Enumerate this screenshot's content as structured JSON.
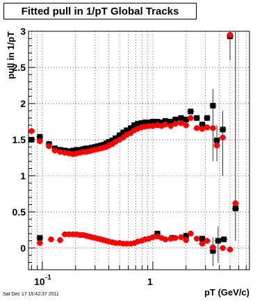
{
  "title": "Fitted pull in 1/pT  Global Tracks",
  "timestamp": "Sat Dec 17 15:42:37 2011",
  "chart_data": {
    "type": "scatter",
    "title": "Fitted pull in 1/pT  Global Tracks",
    "xlabel": "pT (GeV/c)",
    "ylabel": "pull in 1/pT",
    "x_scale": "log",
    "xlim": [
      0.075,
      7.5
    ],
    "ylim": [
      -0.3,
      3.0
    ],
    "x_ticks": [
      {
        "value": 0.1,
        "label": "10",
        "exp": "-1"
      },
      {
        "value": 1,
        "label": "1",
        "exp": ""
      }
    ],
    "y_ticks": [
      {
        "value": 0,
        "label": "0"
      },
      {
        "value": 0.5,
        "label": "0.5"
      },
      {
        "value": 1,
        "label": "1"
      },
      {
        "value": 1.5,
        "label": "1.5"
      },
      {
        "value": 2,
        "label": "2"
      },
      {
        "value": 2.5,
        "label": "2.5"
      },
      {
        "value": 3,
        "label": "3"
      }
    ],
    "grid": true,
    "colors": {
      "series_a": "#000000",
      "series_b": "#ff0000"
    },
    "series": [
      {
        "marker": "square",
        "color": "#000000",
        "points": [
          [
            0.08,
            1.5
          ],
          [
            0.095,
            1.54
          ],
          [
            0.115,
            1.44
          ],
          [
            0.13,
            1.38
          ],
          [
            0.145,
            1.36
          ],
          [
            0.16,
            1.35
          ],
          [
            0.175,
            1.34
          ],
          [
            0.19,
            1.35
          ],
          [
            0.205,
            1.36
          ],
          [
            0.22,
            1.36
          ],
          [
            0.235,
            1.37
          ],
          [
            0.25,
            1.38
          ],
          [
            0.265,
            1.38
          ],
          [
            0.28,
            1.39
          ],
          [
            0.3,
            1.4
          ],
          [
            0.32,
            1.41
          ],
          [
            0.34,
            1.42
          ],
          [
            0.36,
            1.43
          ],
          [
            0.38,
            1.45
          ],
          [
            0.4,
            1.47
          ],
          [
            0.43,
            1.49
          ],
          [
            0.46,
            1.52
          ],
          [
            0.5,
            1.56
          ],
          [
            0.54,
            1.6
          ],
          [
            0.58,
            1.63
          ],
          [
            0.63,
            1.66
          ],
          [
            0.68,
            1.7
          ],
          [
            0.73,
            1.72
          ],
          [
            0.79,
            1.73
          ],
          [
            0.85,
            1.74
          ],
          [
            0.92,
            1.74
          ],
          [
            1.0,
            1.75
          ],
          [
            1.1,
            1.75
          ],
          [
            1.2,
            1.74
          ],
          [
            1.3,
            1.76
          ],
          [
            1.45,
            1.75
          ],
          [
            1.6,
            1.78
          ],
          [
            1.8,
            1.8
          ],
          [
            2.0,
            1.78
          ],
          [
            2.2,
            1.89
          ],
          [
            2.5,
            1.8
          ],
          [
            2.8,
            1.71
          ],
          [
            3.1,
            1.8
          ],
          [
            3.5,
            1.97
          ],
          [
            3.8,
            1.49
          ],
          [
            4.3,
            1.64
          ],
          [
            5.0,
            2.93
          ],
          [
            5.6,
            0.55
          ]
        ],
        "low_points": [
          [
            0.095,
            0.14
          ],
          [
            1.1,
            0.2
          ],
          [
            1.5,
            0.14
          ],
          [
            2.0,
            0.17
          ],
          [
            2.8,
            0.13
          ],
          [
            3.5,
            -0.04
          ],
          [
            3.9,
            0.1
          ],
          [
            4.4,
            0.12
          ],
          [
            5.6,
            0.55
          ]
        ]
      },
      {
        "marker": "circle",
        "color": "#ff0000",
        "points": [
          [
            0.08,
            1.62
          ],
          [
            0.095,
            1.48
          ],
          [
            0.115,
            1.41
          ],
          [
            0.13,
            1.35
          ],
          [
            0.145,
            1.33
          ],
          [
            0.16,
            1.32
          ],
          [
            0.175,
            1.31
          ],
          [
            0.19,
            1.3
          ],
          [
            0.205,
            1.31
          ],
          [
            0.22,
            1.32
          ],
          [
            0.235,
            1.33
          ],
          [
            0.25,
            1.33
          ],
          [
            0.265,
            1.34
          ],
          [
            0.28,
            1.35
          ],
          [
            0.3,
            1.36
          ],
          [
            0.32,
            1.37
          ],
          [
            0.34,
            1.38
          ],
          [
            0.36,
            1.39
          ],
          [
            0.38,
            1.4
          ],
          [
            0.4,
            1.42
          ],
          [
            0.43,
            1.44
          ],
          [
            0.46,
            1.47
          ],
          [
            0.5,
            1.5
          ],
          [
            0.54,
            1.53
          ],
          [
            0.58,
            1.57
          ],
          [
            0.63,
            1.59
          ],
          [
            0.68,
            1.63
          ],
          [
            0.73,
            1.65
          ],
          [
            0.79,
            1.67
          ],
          [
            0.85,
            1.68
          ],
          [
            0.92,
            1.69
          ],
          [
            1.0,
            1.69
          ],
          [
            1.1,
            1.7
          ],
          [
            1.2,
            1.69
          ],
          [
            1.3,
            1.71
          ],
          [
            1.45,
            1.69
          ],
          [
            1.6,
            1.72
          ],
          [
            1.8,
            1.73
          ],
          [
            2.0,
            1.7
          ],
          [
            2.2,
            1.8
          ],
          [
            2.5,
            1.66
          ],
          [
            2.8,
            1.65
          ],
          [
            3.1,
            1.67
          ],
          [
            3.5,
            1.66
          ],
          [
            3.8,
            1.42
          ],
          [
            4.3,
            1.53
          ],
          [
            5.0,
            2.95
          ],
          [
            5.6,
            0.62
          ]
        ],
        "low_points": [
          [
            0.095,
            0.07
          ],
          [
            0.12,
            0.12
          ],
          [
            0.145,
            0.11
          ],
          [
            0.16,
            0.19
          ],
          [
            0.175,
            0.19
          ],
          [
            0.19,
            0.19
          ],
          [
            0.205,
            0.19
          ],
          [
            0.22,
            0.18
          ],
          [
            0.235,
            0.18
          ],
          [
            0.25,
            0.17
          ],
          [
            0.265,
            0.16
          ],
          [
            0.28,
            0.15
          ],
          [
            0.3,
            0.14
          ],
          [
            0.32,
            0.13
          ],
          [
            0.34,
            0.12
          ],
          [
            0.36,
            0.11
          ],
          [
            0.38,
            0.1
          ],
          [
            0.4,
            0.09
          ],
          [
            0.43,
            0.08
          ],
          [
            0.46,
            0.07
          ],
          [
            0.5,
            0.07
          ],
          [
            0.54,
            0.06
          ],
          [
            0.58,
            0.06
          ],
          [
            0.63,
            0.06
          ],
          [
            0.68,
            0.07
          ],
          [
            0.73,
            0.09
          ],
          [
            0.79,
            0.1
          ],
          [
            0.85,
            0.12
          ],
          [
            0.92,
            0.13
          ],
          [
            1.0,
            0.15
          ],
          [
            1.1,
            0.16
          ],
          [
            1.2,
            0.14
          ],
          [
            1.3,
            0.12
          ],
          [
            1.45,
            0.13
          ],
          [
            1.6,
            0.14
          ],
          [
            1.8,
            0.15
          ],
          [
            2.0,
            0.11
          ],
          [
            2.2,
            0.2
          ],
          [
            2.5,
            0.13
          ],
          [
            2.8,
            0.06
          ],
          [
            3.1,
            0.1
          ],
          [
            3.5,
            0.01
          ],
          [
            4.3,
            0.0
          ],
          [
            5.0,
            -0.02
          ]
        ]
      }
    ]
  }
}
